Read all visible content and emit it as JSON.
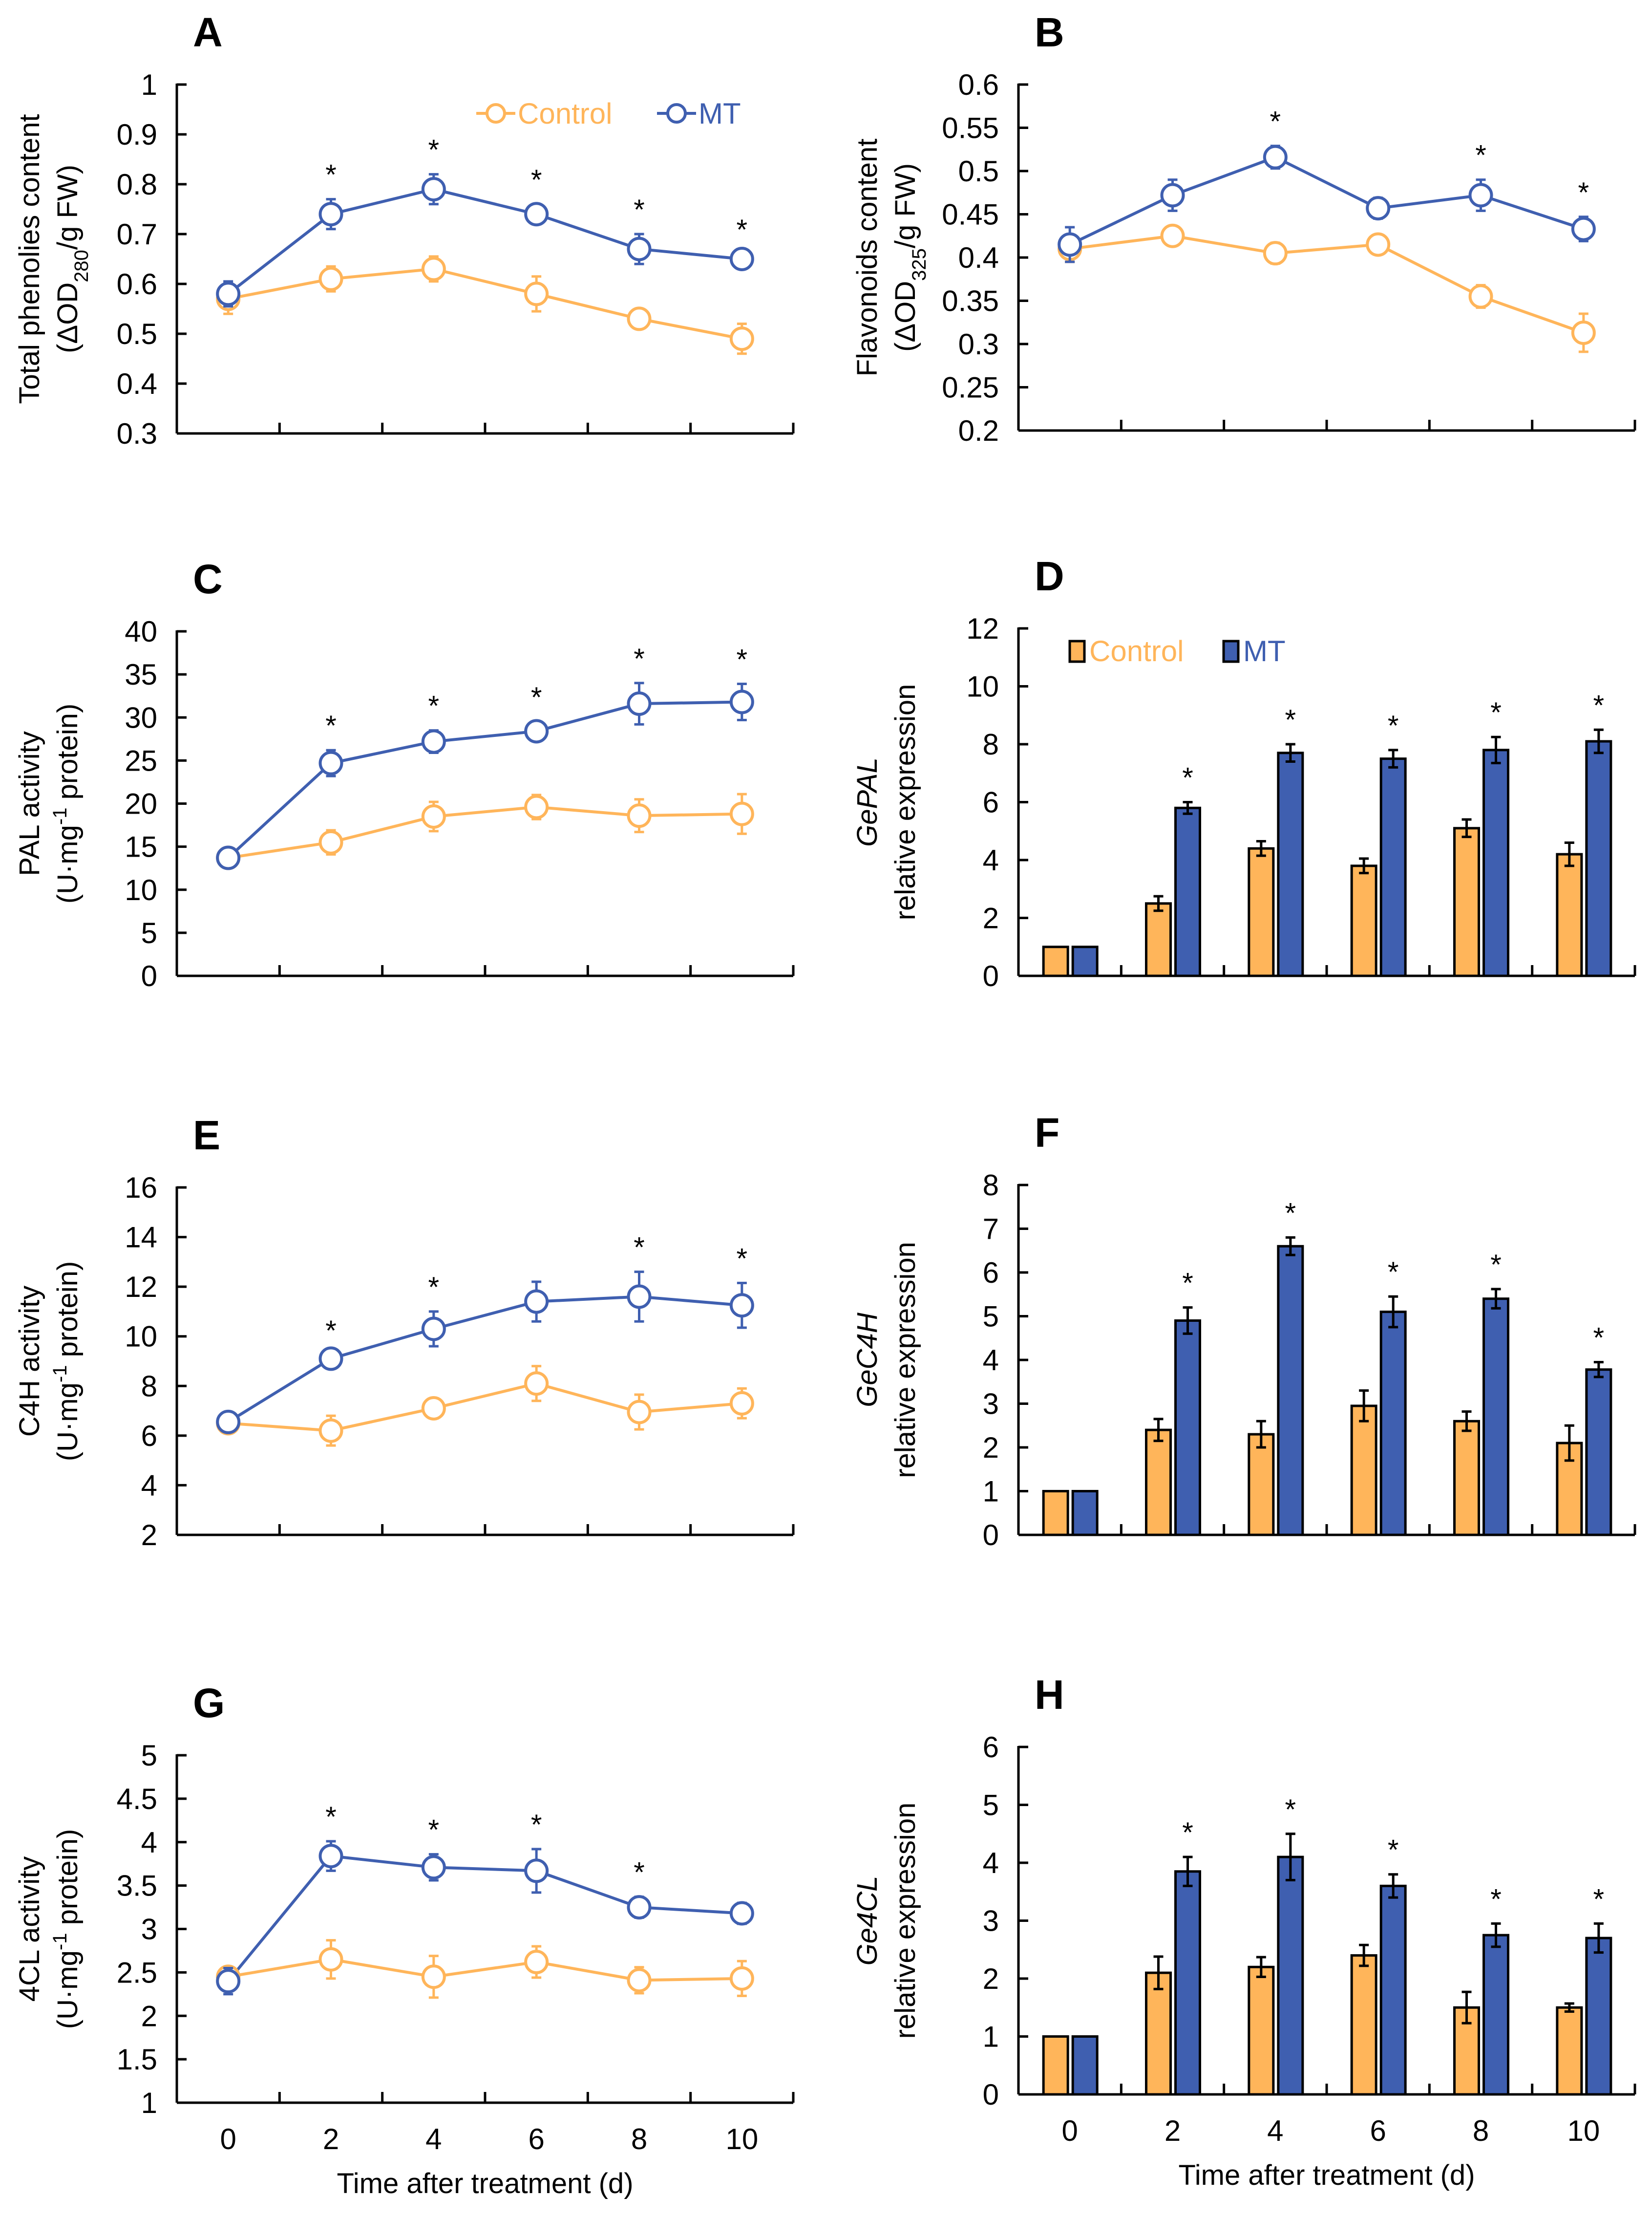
{
  "colors": {
    "control": "#FFB55A",
    "mt": "#3F5FB0",
    "axis": "#000000"
  },
  "chart_data": [
    {
      "panel": "A",
      "type": "line",
      "ylim": [
        0.3,
        1
      ],
      "yticks": [
        "0.3",
        "0.4",
        "0.5",
        "0.6",
        "0.7",
        "0.8",
        "0.9",
        "1"
      ],
      "ylabel": [
        [
          {
            "t": "Total phenolies content"
          }
        ],
        [
          {
            "t": "(ΔOD"
          },
          {
            "t": "280",
            "sub": true
          },
          {
            "t": "/g FW)"
          }
        ]
      ],
      "categories": [
        "0",
        "2",
        "4",
        "6",
        "8",
        "10"
      ],
      "legend": "top-right",
      "series": [
        {
          "name": "Control",
          "values": [
            0.57,
            0.61,
            0.63,
            0.58,
            0.53,
            0.49
          ],
          "errors": [
            0.03,
            0.025,
            0.025,
            0.035,
            0.01,
            0.03
          ]
        },
        {
          "name": "MT",
          "values": [
            0.58,
            0.74,
            0.79,
            0.74,
            0.67,
            0.65
          ],
          "errors": [
            0.025,
            0.03,
            0.03,
            0.02,
            0.03,
            0.01
          ]
        }
      ],
      "significant": [
        false,
        true,
        true,
        true,
        true,
        true
      ],
      "sig_label": "*"
    },
    {
      "panel": "B",
      "type": "line",
      "ylim": [
        0.2,
        0.6
      ],
      "yticks": [
        "0.2",
        "0.25",
        "0.3",
        "0.35",
        "0.4",
        "0.45",
        "0.5",
        "0.55",
        "0.6"
      ],
      "ylabel": [
        [
          {
            "t": "Flavonoids content"
          }
        ],
        [
          {
            "t": "(ΔOD"
          },
          {
            "t": "325",
            "sub": true
          },
          {
            "t": "/g FW)"
          }
        ]
      ],
      "categories": [
        "0",
        "2",
        "4",
        "6",
        "8",
        "10"
      ],
      "series": [
        {
          "name": "Control",
          "values": [
            0.41,
            0.425,
            0.405,
            0.415,
            0.355,
            0.313
          ],
          "errors": [
            0.015,
            0.005,
            0.012,
            0.01,
            0.013,
            0.022
          ]
        },
        {
          "name": "MT",
          "values": [
            0.415,
            0.472,
            0.516,
            0.457,
            0.472,
            0.433
          ],
          "errors": [
            0.02,
            0.018,
            0.013,
            0.012,
            0.018,
            0.014
          ]
        }
      ],
      "significant": [
        false,
        false,
        true,
        false,
        true,
        true
      ],
      "sig_label": "*"
    },
    {
      "panel": "C",
      "type": "line",
      "ylim": [
        0,
        40
      ],
      "yticks": [
        "0",
        "5",
        "10",
        "15",
        "20",
        "25",
        "30",
        "35",
        "40"
      ],
      "ylabel": [
        [
          {
            "t": "PAL activity"
          }
        ],
        [
          {
            "t": "(U·mg"
          },
          {
            "t": "-1",
            "sup": true
          },
          {
            "t": " protein)"
          }
        ]
      ],
      "categories": [
        "0",
        "2",
        "4",
        "6",
        "8",
        "10"
      ],
      "series": [
        {
          "name": "Control",
          "values": [
            13.7,
            15.5,
            18.5,
            19.6,
            18.6,
            18.8
          ],
          "errors": [
            1.0,
            1.4,
            1.7,
            1.4,
            1.9,
            2.3
          ]
        },
        {
          "name": "MT",
          "values": [
            13.7,
            24.7,
            27.2,
            28.4,
            31.6,
            31.8
          ],
          "errors": [
            1.1,
            1.5,
            1.3,
            1.1,
            2.4,
            2.1
          ]
        }
      ],
      "significant": [
        false,
        true,
        true,
        true,
        true,
        true
      ],
      "sig_label": "*"
    },
    {
      "panel": "D",
      "type": "bar",
      "ylim": [
        0,
        12
      ],
      "yticks": [
        "0",
        "2",
        "4",
        "6",
        "8",
        "10",
        "12"
      ],
      "ylabel": [
        [
          {
            "t": "Ge"
          },
          {
            "t": "PAL",
            "it": true
          }
        ],
        [
          {
            "t": "relative expression"
          }
        ]
      ],
      "ylabel_italic": true,
      "categories": [
        "0",
        "2",
        "4",
        "6",
        "8",
        "10"
      ],
      "legend": "top-left",
      "series": [
        {
          "name": "Control",
          "values": [
            1,
            2.5,
            4.4,
            3.8,
            5.1,
            4.2
          ],
          "errors": [
            0,
            0.25,
            0.25,
            0.25,
            0.3,
            0.4
          ]
        },
        {
          "name": "MT",
          "values": [
            1,
            5.8,
            7.7,
            7.5,
            7.8,
            8.1
          ],
          "errors": [
            0,
            0.2,
            0.3,
            0.3,
            0.45,
            0.4
          ]
        }
      ],
      "significant": [
        false,
        true,
        true,
        true,
        true,
        true
      ],
      "sig_label": "*"
    },
    {
      "panel": "E",
      "type": "line",
      "ylim": [
        2,
        16
      ],
      "yticks": [
        "2",
        "4",
        "6",
        "8",
        "10",
        "12",
        "14",
        "16"
      ],
      "ylabel": [
        [
          {
            "t": "C4H activity"
          }
        ],
        [
          {
            "t": "(U·mg"
          },
          {
            "t": "-1",
            "sup": true
          },
          {
            "t": " protein)"
          }
        ]
      ],
      "categories": [
        "0",
        "2",
        "4",
        "6",
        "8",
        "10"
      ],
      "series": [
        {
          "name": "Control",
          "values": [
            6.5,
            6.2,
            7.1,
            8.1,
            6.95,
            7.3
          ],
          "errors": [
            0.3,
            0.6,
            0.4,
            0.7,
            0.7,
            0.6
          ]
        },
        {
          "name": "MT",
          "values": [
            6.55,
            9.1,
            10.3,
            11.4,
            11.6,
            11.25
          ],
          "errors": [
            0.3,
            0.15,
            0.7,
            0.8,
            1.0,
            0.9
          ]
        }
      ],
      "significant": [
        false,
        true,
        true,
        false,
        true,
        true
      ],
      "sig_label": "*"
    },
    {
      "panel": "F",
      "type": "bar",
      "ylim": [
        0,
        8
      ],
      "yticks": [
        "0",
        "1",
        "2",
        "3",
        "4",
        "5",
        "6",
        "7",
        "8"
      ],
      "ylabel": [
        [
          {
            "t": "Ge"
          },
          {
            "t": "C4H",
            "it": true
          }
        ],
        [
          {
            "t": "relative expression"
          }
        ]
      ],
      "ylabel_italic": true,
      "categories": [
        "0",
        "2",
        "4",
        "6",
        "8",
        "10"
      ],
      "series": [
        {
          "name": "Control",
          "values": [
            1,
            2.4,
            2.3,
            2.95,
            2.6,
            2.1
          ],
          "errors": [
            0,
            0.25,
            0.3,
            0.35,
            0.22,
            0.4
          ]
        },
        {
          "name": "MT",
          "values": [
            1,
            4.9,
            6.6,
            5.1,
            5.4,
            3.78
          ],
          "errors": [
            0,
            0.3,
            0.2,
            0.35,
            0.22,
            0.17
          ]
        }
      ],
      "significant": [
        false,
        true,
        true,
        true,
        true,
        true
      ],
      "sig_label": "*"
    },
    {
      "panel": "G",
      "type": "line",
      "ylim": [
        1,
        5
      ],
      "yticks": [
        "1",
        "1.5",
        "2",
        "2.5",
        "3",
        "3.5",
        "4",
        "4.5",
        "5"
      ],
      "ylabel": [
        [
          {
            "t": "4CL activity"
          }
        ],
        [
          {
            "t": "(U·mg"
          },
          {
            "t": "-1",
            "sup": true
          },
          {
            "t": " protein)"
          }
        ]
      ],
      "categories": [
        "0",
        "2",
        "4",
        "6",
        "8",
        "10"
      ],
      "xlabel": "Time after treatment (d)",
      "series": [
        {
          "name": "Control",
          "values": [
            2.45,
            2.65,
            2.45,
            2.62,
            2.41,
            2.43
          ],
          "errors": [
            0.08,
            0.22,
            0.24,
            0.18,
            0.15,
            0.2
          ]
        },
        {
          "name": "MT",
          "values": [
            2.4,
            3.84,
            3.71,
            3.67,
            3.25,
            3.18
          ],
          "errors": [
            0.15,
            0.17,
            0.15,
            0.25,
            0.12,
            0.12
          ]
        }
      ],
      "significant": [
        false,
        true,
        true,
        true,
        true,
        false
      ],
      "sig_label": "*"
    },
    {
      "panel": "H",
      "type": "bar",
      "ylim": [
        0,
        6
      ],
      "yticks": [
        "0",
        "1",
        "2",
        "3",
        "4",
        "5",
        "6"
      ],
      "ylabel": [
        [
          {
            "t": "Ge"
          },
          {
            "t": "4CL",
            "it": true
          }
        ],
        [
          {
            "t": "relative expression"
          }
        ]
      ],
      "ylabel_italic": true,
      "categories": [
        "0",
        "2",
        "4",
        "6",
        "8",
        "10"
      ],
      "xlabel": "Time after treatment (d)",
      "series": [
        {
          "name": "Control",
          "values": [
            1,
            2.1,
            2.2,
            2.4,
            1.5,
            1.5
          ],
          "errors": [
            0,
            0.28,
            0.17,
            0.18,
            0.27,
            0.07
          ]
        },
        {
          "name": "MT",
          "values": [
            1,
            3.85,
            4.1,
            3.6,
            2.75,
            2.7
          ],
          "errors": [
            0,
            0.25,
            0.4,
            0.2,
            0.2,
            0.25
          ]
        }
      ],
      "significant": [
        false,
        true,
        true,
        true,
        true,
        true
      ],
      "sig_label": "*"
    }
  ]
}
